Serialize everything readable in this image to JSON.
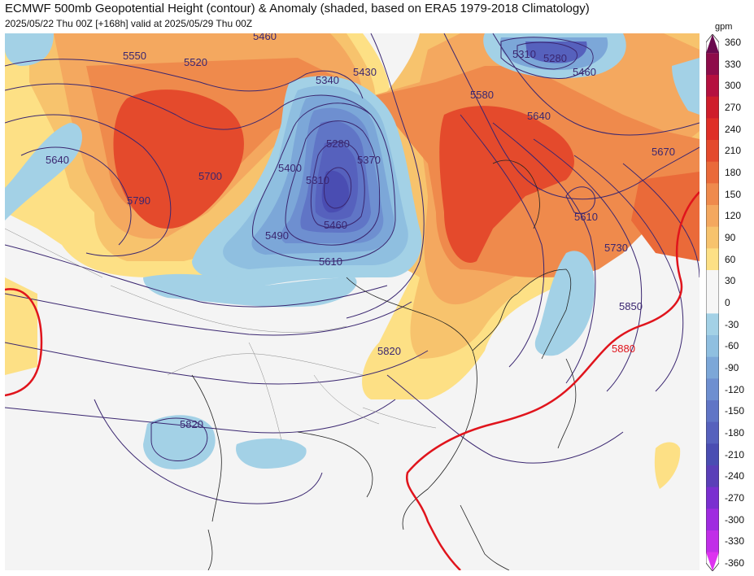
{
  "header": {
    "title": "ECMWF 500mb Geopotential Height (contour) & Anomaly (shaded, based on ERA5 1979-2018 Climatology)",
    "subtitle": "2025/05/22 Thu 00Z [+168h] valid at 2025/05/29 Thu 00Z"
  },
  "colorbar": {
    "unit": "gpm",
    "labels": [
      "360",
      "330",
      "300",
      "270",
      "240",
      "210",
      "180",
      "150",
      "120",
      "90",
      "60",
      "30",
      "0",
      "-30",
      "-60",
      "-90",
      "-120",
      "-150",
      "-180",
      "-210",
      "-240",
      "-270",
      "-300",
      "-330",
      "-360"
    ],
    "colors": [
      "#6a0a4e",
      "#8e0c4a",
      "#b5103f",
      "#cf1d2b",
      "#df2f27",
      "#e44a2c",
      "#ea6a39",
      "#ef8a4c",
      "#f4a85f",
      "#f7c36d",
      "#fde085",
      "#f6f6f6",
      "#f6f6f6",
      "#a3d1e6",
      "#8fbfe0",
      "#7ca7d8",
      "#6e8fd0",
      "#6075c6",
      "#5661bd",
      "#4a4db2",
      "#5a3fb8",
      "#7a2fd0",
      "#9f2be0",
      "#c12ee8",
      "#dd33f0"
    ]
  },
  "contour_labels": [
    "5550",
    "5520",
    "5460",
    "5430",
    "5340",
    "5310",
    "5280",
    "5460",
    "5580",
    "5640",
    "5670",
    "5640",
    "5700",
    "5790",
    "5400",
    "5280",
    "5370",
    "5310",
    "5490",
    "5460",
    "5610",
    "5610",
    "5730",
    "5850",
    "5880",
    "5820",
    "5820"
  ],
  "reference_contour": {
    "value": "5880",
    "color": "#e0141c"
  }
}
